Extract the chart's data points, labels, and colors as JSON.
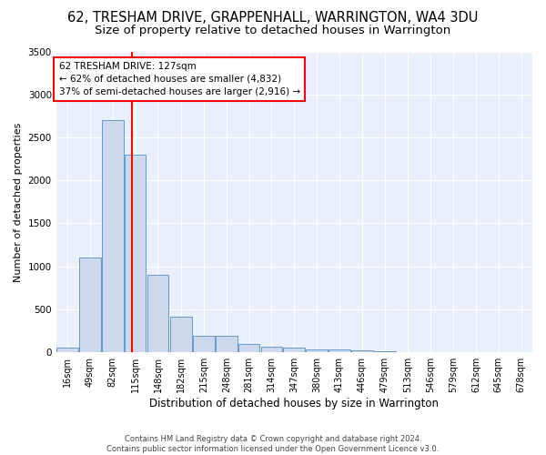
{
  "title": "62, TRESHAM DRIVE, GRAPPENHALL, WARRINGTON, WA4 3DU",
  "subtitle": "Size of property relative to detached houses in Warrington",
  "xlabel": "Distribution of detached houses by size in Warrington",
  "ylabel": "Number of detached properties",
  "bins": [
    16,
    49,
    82,
    115,
    148,
    182,
    215,
    248,
    281,
    314,
    347,
    380,
    413,
    446,
    479,
    513,
    546,
    579,
    612,
    645,
    678
  ],
  "heights": [
    50,
    1100,
    2700,
    2300,
    900,
    420,
    190,
    190,
    100,
    70,
    50,
    30,
    30,
    20,
    10,
    5,
    5,
    5,
    3,
    3
  ],
  "bar_color": "#cdd8ec",
  "bar_edge_color": "#6699cc",
  "vline_x": 127,
  "vline_color": "red",
  "annotation_text": "62 TRESHAM DRIVE: 127sqm\n← 62% of detached houses are smaller (4,832)\n37% of semi-detached houses are larger (2,916) →",
  "annotation_box_facecolor": "white",
  "annotation_box_edgecolor": "red",
  "ylim": [
    0,
    3500
  ],
  "yticks": [
    0,
    500,
    1000,
    1500,
    2000,
    2500,
    3000,
    3500
  ],
  "bg_color": "#eaf0fb",
  "footer": "Contains HM Land Registry data © Crown copyright and database right 2024.\nContains public sector information licensed under the Open Government Licence v3.0.",
  "title_fontsize": 10.5,
  "subtitle_fontsize": 9.5,
  "ylabel_fontsize": 8,
  "xlabel_fontsize": 8.5,
  "tick_fontsize": 7,
  "ytick_fontsize": 7.5
}
